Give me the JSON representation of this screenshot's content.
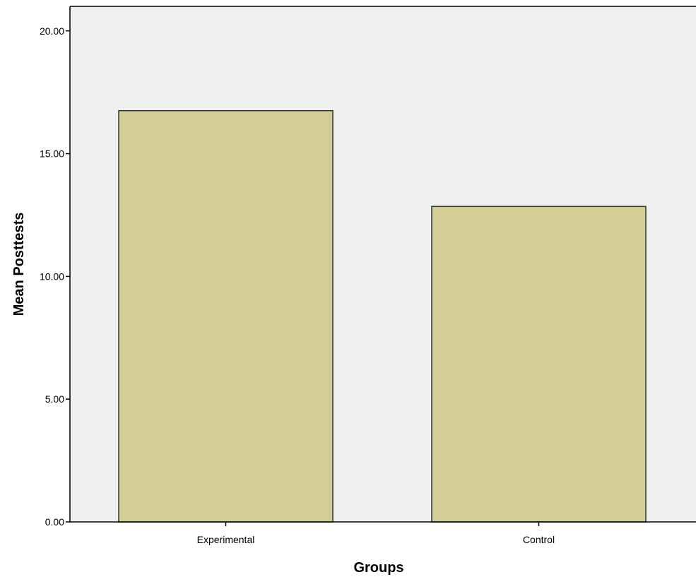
{
  "chart_data": {
    "type": "bar",
    "categories": [
      "Experimental",
      "Control"
    ],
    "values": [
      16.75,
      12.85
    ],
    "title": "",
    "xlabel": "Groups",
    "ylabel": "Mean Posttests",
    "ylim": [
      0,
      21
    ],
    "yticks": [
      0,
      5,
      10,
      15,
      20
    ],
    "ytick_labels": [
      "0.00",
      "5.00",
      "10.00",
      "15.00",
      "20.00"
    ],
    "grid": false,
    "colors": {
      "bar_fill": "#d3cd96",
      "bar_stroke": "#333333",
      "plot_background": "#f0f0f0",
      "axis": "#000000"
    }
  }
}
